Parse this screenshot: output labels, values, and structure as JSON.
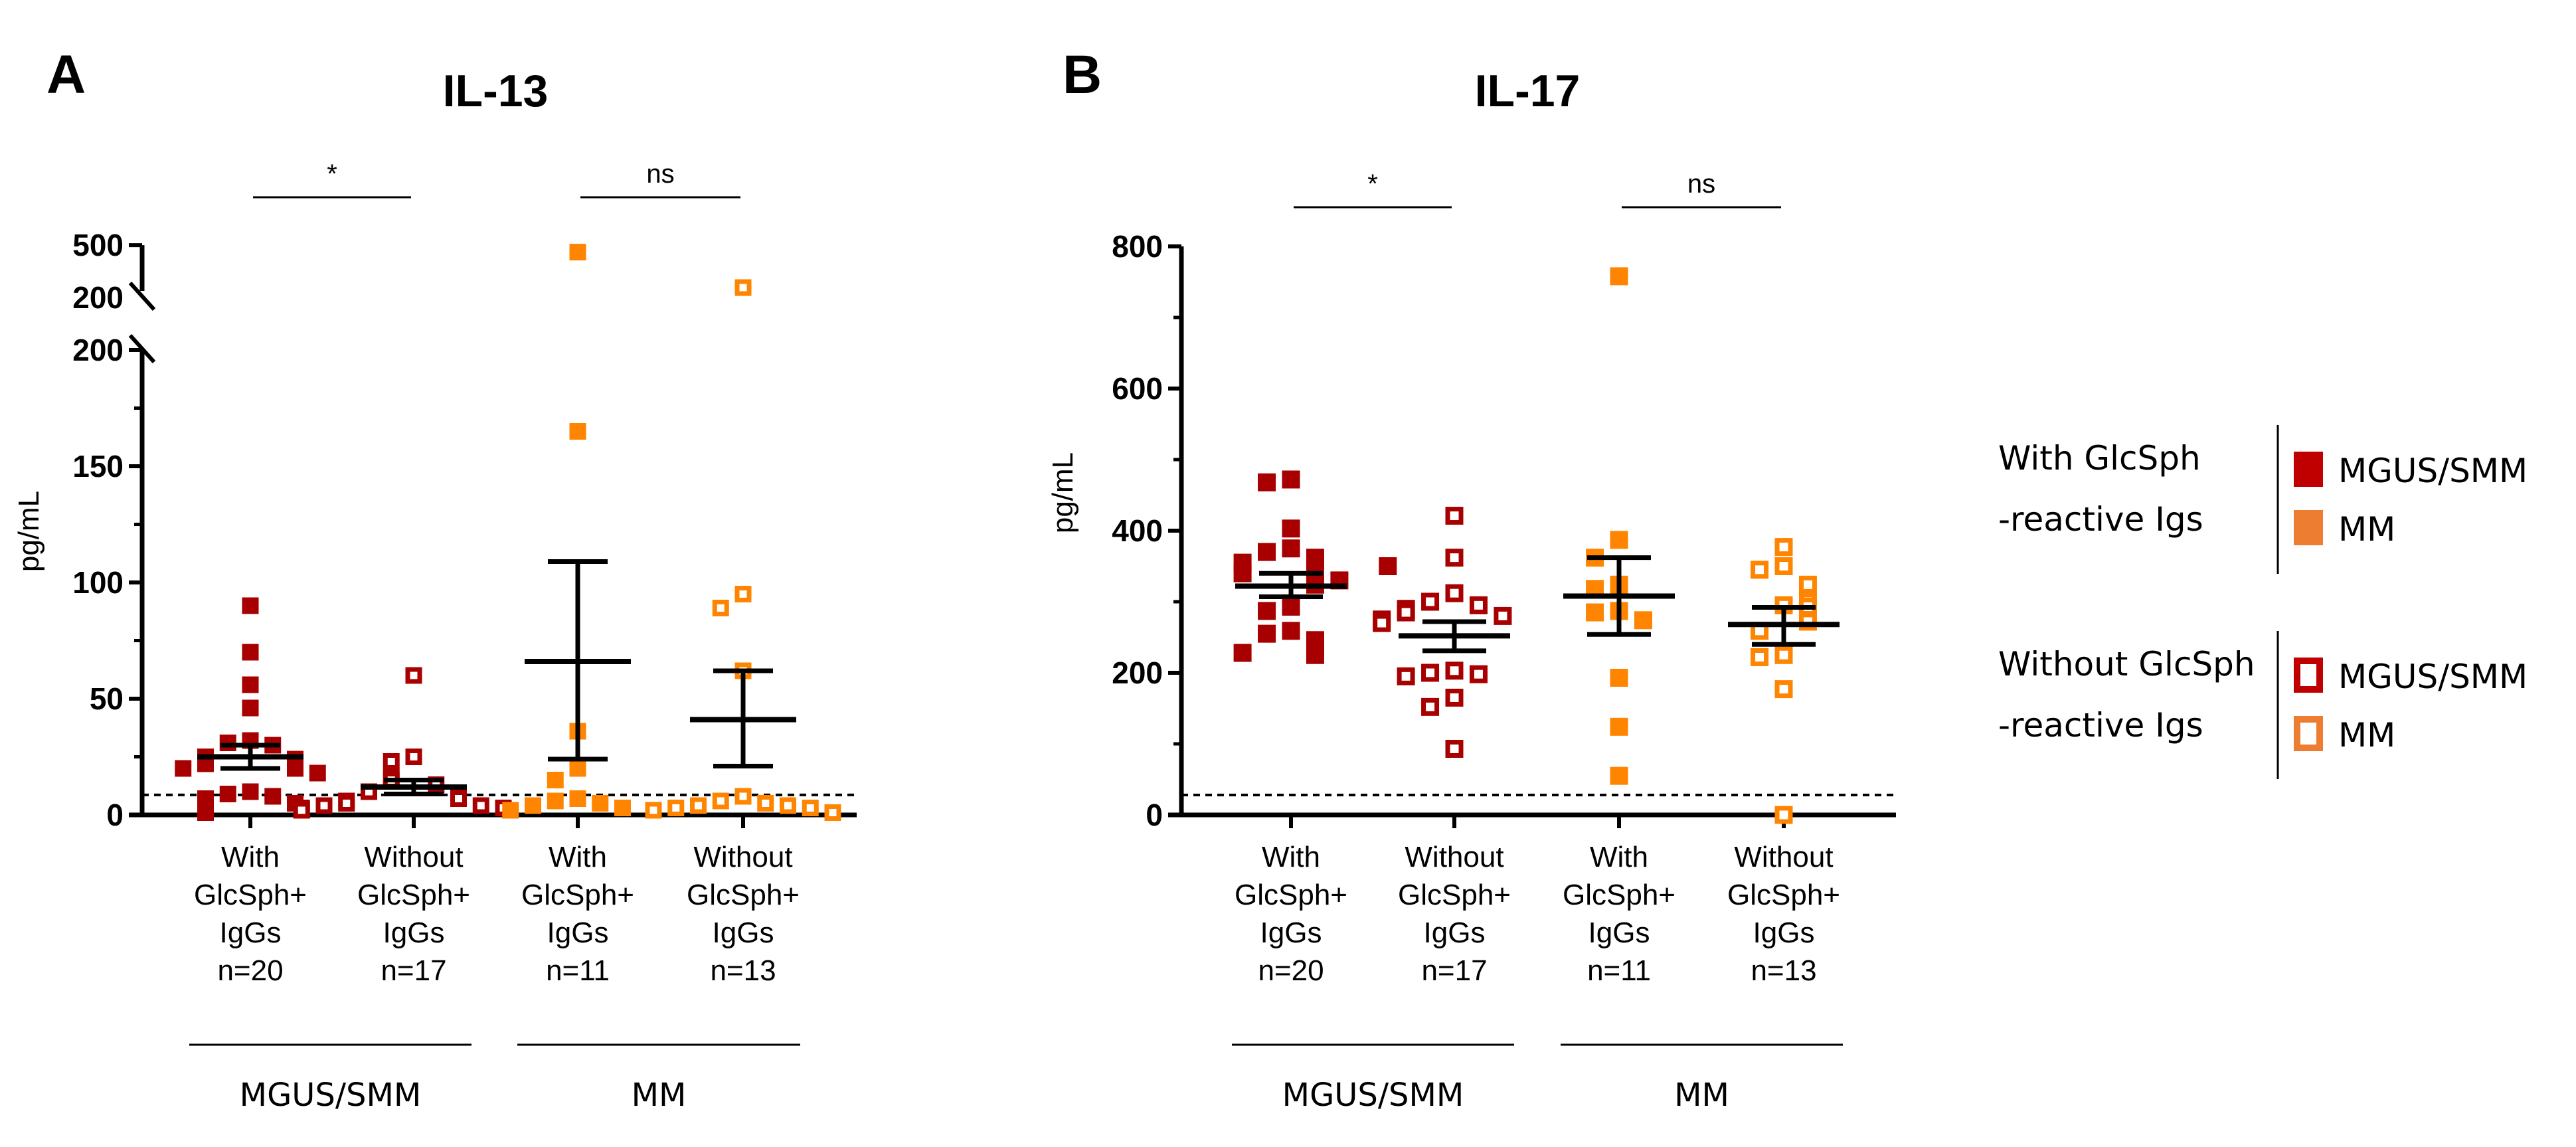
{
  "colors": {
    "mgus": "#a80000",
    "mm": "#ff8400",
    "legend_mgus": "#c00000",
    "legend_mm": "#ed7d31"
  },
  "chart_data": [
    {
      "type": "scatter",
      "panel": "A",
      "title": "IL-13",
      "ylabel": "pg/mL",
      "ylim": [
        0,
        500
      ],
      "y_break": {
        "lower": [
          0,
          200
        ],
        "upper": [
          200,
          500
        ]
      },
      "yticks_lower": [
        0,
        50,
        100,
        150,
        200
      ],
      "yticks_lower_labels": [
        "0",
        "50",
        "100",
        "150",
        "200"
      ],
      "yticks_minor": [
        25,
        75,
        125,
        175
      ],
      "yticks_upper": [
        200,
        500
      ],
      "yticks_upper_labels": [
        "200",
        "500"
      ],
      "detection_limit": 8.6,
      "categories": [
        {
          "lines": [
            "With",
            "GlcSph+",
            "IgGs",
            "n=20"
          ],
          "group": "MGUS/SMM",
          "filled": true
        },
        {
          "lines": [
            "Without",
            "GlcSph+",
            "IgGs",
            "n=17"
          ],
          "group": "MGUS/SMM",
          "filled": false
        },
        {
          "lines": [
            "With",
            "GlcSph+",
            "IgGs",
            "n=11"
          ],
          "group": "MM",
          "filled": true
        },
        {
          "lines": [
            "Without",
            "GlcSph+",
            "IgGs",
            "n=13"
          ],
          "group": "MM",
          "filled": false
        }
      ],
      "series": [
        {
          "name": "With GlcSph+ IgGs MGUS/SMM",
          "values": [
            90,
            70,
            56,
            46,
            32,
            31,
            30,
            25,
            24,
            24,
            22,
            20,
            20,
            18,
            10,
            9,
            8,
            7,
            5,
            1
          ],
          "mean": 25,
          "sem_range": [
            20,
            30
          ]
        },
        {
          "name": "Without GlcSph+ IgGs MGUS/SMM",
          "values": [
            60,
            25,
            23,
            16,
            15,
            13,
            10,
            9,
            8,
            7,
            6,
            5,
            4,
            4,
            3,
            3,
            2
          ],
          "mean": 12,
          "sem_range": [
            9,
            15
          ]
        },
        {
          "name": "With GlcSph+ IgGs MM",
          "values": [
            460,
            165,
            36,
            20,
            15,
            7,
            6,
            5,
            4,
            3,
            2
          ],
          "mean": 66,
          "sem_range": [
            24,
            109
          ]
        },
        {
          "name": "Without GlcSph+ IgGs MM",
          "values": [
            257,
            95,
            89,
            62,
            8,
            6,
            5,
            4,
            4,
            3,
            3,
            2,
            1
          ],
          "mean": 41,
          "sem_range": [
            21,
            62
          ]
        }
      ],
      "comparisons": [
        {
          "pair": [
            0,
            1
          ],
          "label": "*"
        },
        {
          "pair": [
            2,
            3
          ],
          "label": "ns"
        }
      ],
      "groups": [
        {
          "label": "MGUS/SMM",
          "cats": [
            0,
            1
          ]
        },
        {
          "label": "MM",
          "cats": [
            2,
            3
          ]
        }
      ]
    },
    {
      "type": "scatter",
      "panel": "B",
      "title": "IL-17",
      "ylabel": "pg/mL",
      "ylim": [
        0,
        800
      ],
      "yticks": [
        0,
        200,
        400,
        600,
        800
      ],
      "yticks_labels": [
        "0",
        "200",
        "400",
        "600",
        "800"
      ],
      "yticks_minor": [
        100,
        300,
        500,
        700
      ],
      "detection_limit": 28,
      "categories": [
        {
          "lines": [
            "With",
            "GlcSph+",
            "IgGs",
            "n=20"
          ],
          "group": "MGUS/SMM",
          "filled": true
        },
        {
          "lines": [
            "Without",
            "GlcSph+",
            "IgGs",
            "n=17"
          ],
          "group": "MGUS/SMM",
          "filled": false
        },
        {
          "lines": [
            "With",
            "GlcSph+",
            "IgGs",
            "n=11"
          ],
          "group": "MM",
          "filled": true
        },
        {
          "lines": [
            "Without",
            "GlcSph+",
            "IgGs",
            "n=13"
          ],
          "group": "MM",
          "filled": false
        }
      ],
      "series": [
        {
          "name": "With GlcSph+ IgGs MGUS/SMM",
          "values": [
            472,
            468,
            403,
            375,
            370,
            362,
            355,
            343,
            340,
            324,
            330,
            293,
            287,
            259,
            255,
            246,
            231,
            225,
            228,
            350
          ],
          "mean": 322,
          "sem_range": [
            307,
            340
          ]
        },
        {
          "name": "Without GlcSph+ IgGs MGUS/SMM",
          "values": [
            421,
            362,
            312,
            300,
            295,
            290,
            285,
            280,
            275,
            270,
            203,
            200,
            198,
            195,
            165,
            152,
            93
          ],
          "mean": 252,
          "sem_range": [
            231,
            272
          ]
        },
        {
          "name": "With GlcSph+ IgGs MM",
          "values": [
            758,
            387,
            362,
            324,
            318,
            287,
            285,
            274,
            193,
            124,
            55
          ],
          "mean": 308,
          "sem_range": [
            254,
            362
          ]
        },
        {
          "name": "Without GlcSph+ IgGs MM",
          "values": [
            377,
            350,
            345,
            324,
            295,
            300,
            293,
            272,
            259,
            225,
            222,
            177,
            0
          ],
          "mean": 268,
          "sem_range": [
            240,
            292
          ]
        }
      ],
      "comparisons": [
        {
          "pair": [
            0,
            1
          ],
          "label": "*"
        },
        {
          "pair": [
            2,
            3
          ],
          "label": "ns"
        }
      ],
      "groups": [
        {
          "label": "MGUS/SMM",
          "cats": [
            0,
            1
          ]
        },
        {
          "label": "MM",
          "cats": [
            2,
            3
          ]
        }
      ]
    }
  ],
  "legend": [
    {
      "lines": [
        "With GlcSph",
        "-reactive Igs"
      ],
      "filled": true,
      "entries": [
        "MGUS/SMM",
        "MM"
      ]
    },
    {
      "lines": [
        "Without GlcSph",
        "-reactive Igs"
      ],
      "filled": false,
      "entries": [
        "MGUS/SMM",
        "MM"
      ]
    }
  ]
}
